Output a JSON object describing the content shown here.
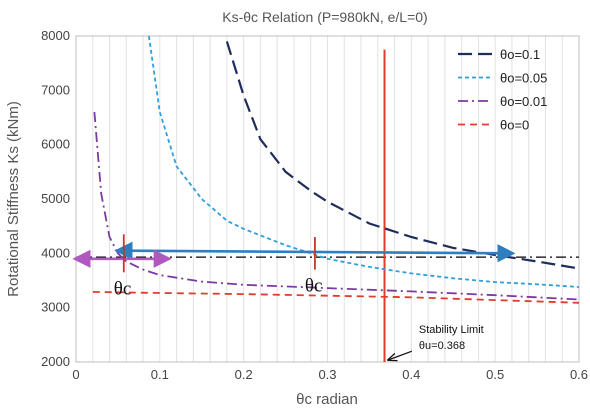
{
  "chart_data": {
    "type": "line",
    "title": "Ks-θc Relation (P=980kN, e/L=0)",
    "xlabel": "θc radian",
    "ylabel": "Rotational Stiffness  Ks (kNm)",
    "xlim": [
      0,
      0.6
    ],
    "ylim": [
      2000,
      8000
    ],
    "x_ticks": [
      "0",
      "0.1",
      "0.2",
      "0.3",
      "0.4",
      "0.5",
      "0.6"
    ],
    "y_ticks": [
      "2000",
      "3000",
      "4000",
      "5000",
      "6000",
      "7000",
      "8000"
    ],
    "grid": "vertical minor gridlines",
    "legend_position": "top-right",
    "series": [
      {
        "name": "θo=0.1",
        "color": "#1f2d5c",
        "dash": "long-dash",
        "x": [
          0.18,
          0.2,
          0.22,
          0.25,
          0.28,
          0.3,
          0.35,
          0.4,
          0.45,
          0.5,
          0.55,
          0.6
        ],
        "y": [
          7900,
          6900,
          6100,
          5500,
          5150,
          4950,
          4550,
          4300,
          4100,
          3970,
          3850,
          3720
        ]
      },
      {
        "name": "θo=0.05",
        "color": "#2f9fdc",
        "dash": "short-dash",
        "x": [
          0.087,
          0.1,
          0.12,
          0.15,
          0.18,
          0.2,
          0.25,
          0.3,
          0.35,
          0.4,
          0.45,
          0.5,
          0.55,
          0.6
        ],
        "y": [
          8000,
          6600,
          5600,
          5000,
          4600,
          4450,
          4150,
          3900,
          3750,
          3630,
          3540,
          3470,
          3430,
          3380
        ]
      },
      {
        "name": "θo=0.01",
        "color": "#7b3aa0",
        "dash": "dash-dot",
        "x": [
          0.022,
          0.03,
          0.04,
          0.05,
          0.06,
          0.08,
          0.1,
          0.15,
          0.2,
          0.3,
          0.4,
          0.5,
          0.6
        ],
        "y": [
          6600,
          5100,
          4300,
          4000,
          3850,
          3700,
          3600,
          3480,
          3420,
          3360,
          3300,
          3230,
          3150
        ]
      },
      {
        "name": "θo=0",
        "color": "#e03c2c",
        "dash": "dash",
        "x": [
          0.02,
          0.1,
          0.2,
          0.3,
          0.4,
          0.5,
          0.6
        ],
        "y": [
          3290,
          3270,
          3250,
          3220,
          3190,
          3140,
          3090
        ]
      }
    ],
    "reference_lines": [
      {
        "kind": "horizontal",
        "y": 3930,
        "x_range": [
          0,
          0.6
        ],
        "color": "#000000",
        "style": "dash-dot"
      },
      {
        "kind": "vertical",
        "x": 0.368,
        "y_range": [
          2000,
          7750
        ],
        "color": "#e03c2c",
        "style": "solid"
      }
    ],
    "arrows": [
      {
        "from": [
          0.52,
          4000
        ],
        "to": [
          0.05,
          4050
        ],
        "color": "#2f7ec0",
        "double_headed": true
      },
      {
        "from": [
          0.0,
          3900
        ],
        "to": [
          0.11,
          3900
        ],
        "color": "#b058c0",
        "double_headed": true
      }
    ],
    "markers": [
      {
        "x": 0.057,
        "y_range": [
          3650,
          4350
        ],
        "color": "#c0392b",
        "label": "θc"
      },
      {
        "x": 0.285,
        "y_range": [
          3700,
          4300
        ],
        "color": "#c0392b",
        "label": "θc"
      }
    ],
    "annotation": {
      "line1": "Stability Limit",
      "line2": "θu=0.368",
      "x": 0.37,
      "y": 2000,
      "text_x": 0.415,
      "text_y": 2530
    }
  }
}
